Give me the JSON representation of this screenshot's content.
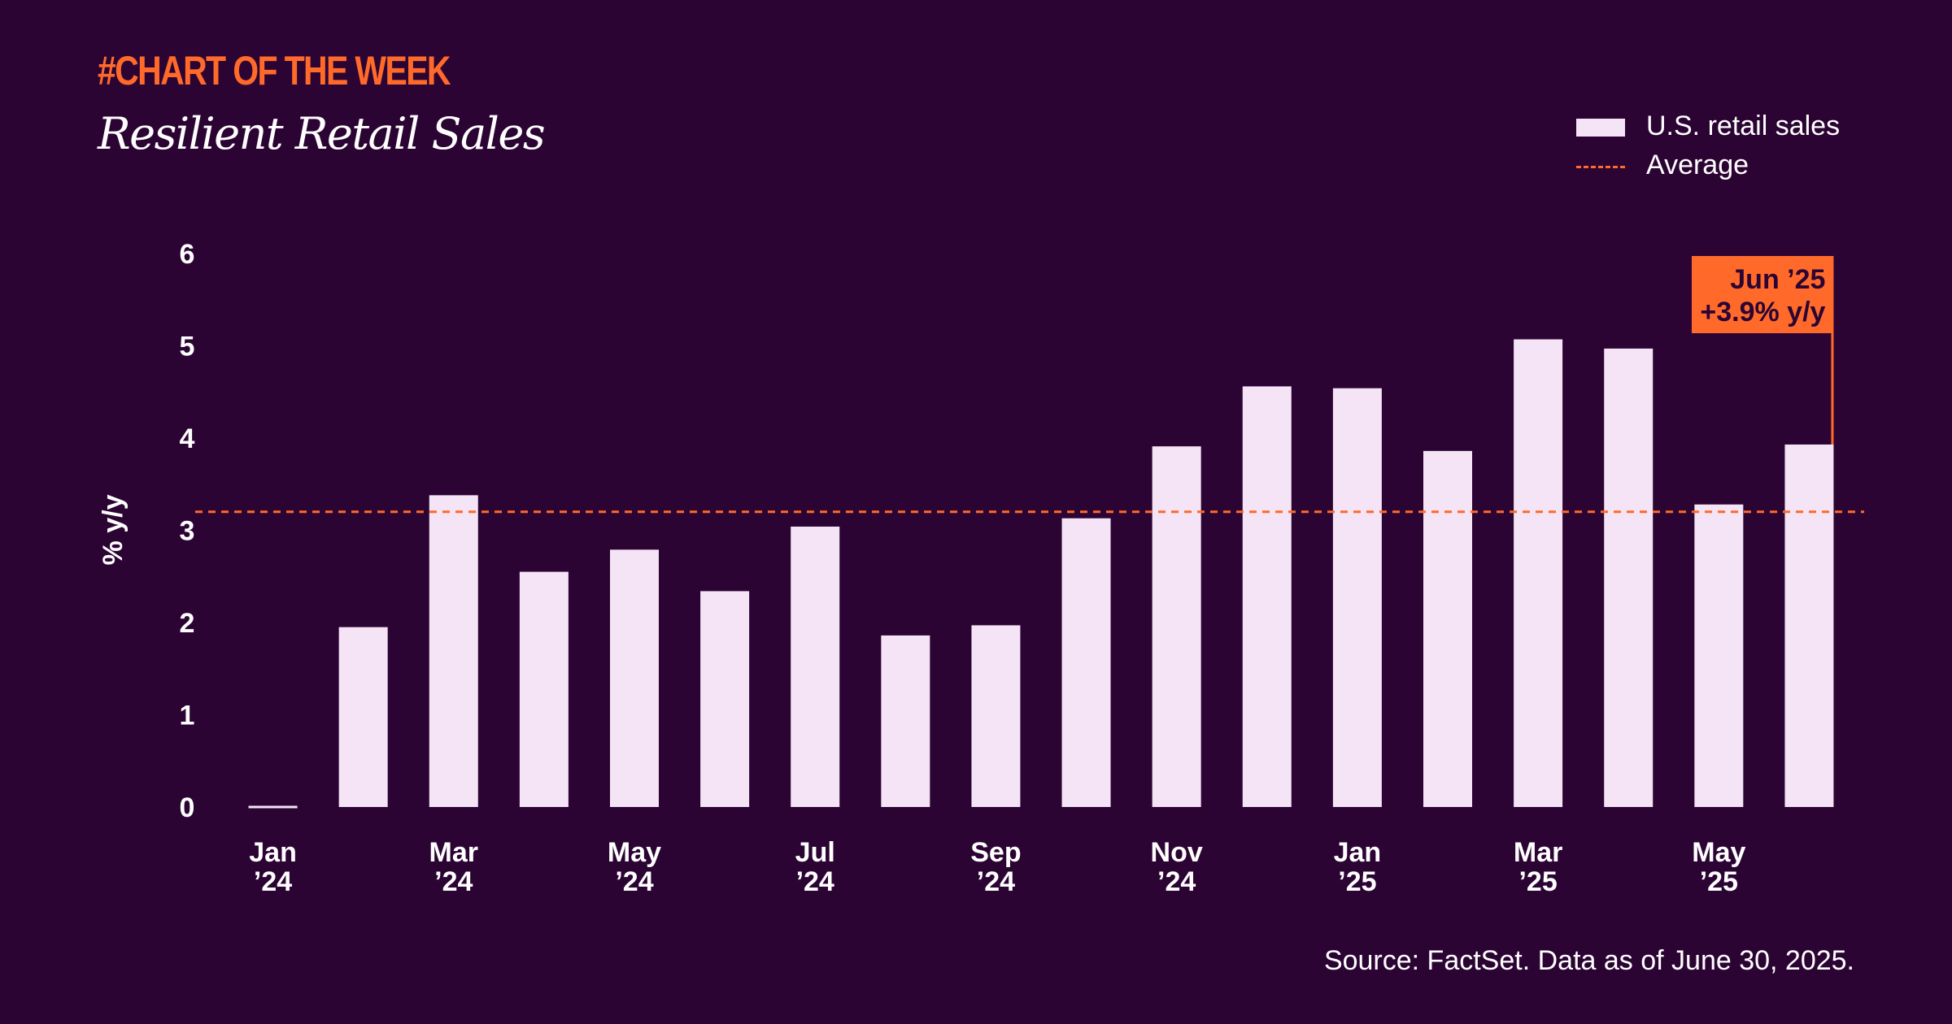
{
  "header": {
    "kicker": "#CHART OF THE WEEK",
    "title": "Resilient Retail Sales"
  },
  "legend": {
    "bars_label": "U.S. retail sales",
    "line_label": "Average"
  },
  "colors": {
    "background": "#2c0434",
    "bar": "#f4e4f6",
    "accent": "#ff6a2a",
    "text": "#ffffff",
    "callout_text": "#2c0434"
  },
  "chart_data": {
    "type": "bar",
    "title": "Resilient Retail Sales",
    "xlabel": "",
    "ylabel": "% y/y",
    "ylim": [
      0,
      6
    ],
    "yticks": [
      0,
      1,
      2,
      3,
      4,
      5,
      6
    ],
    "grid": false,
    "legend_position": "top-right",
    "categories": [
      "Jan '24",
      "Feb '24",
      "Mar '24",
      "Apr '24",
      "May '24",
      "Jun '24",
      "Jul '24",
      "Aug '24",
      "Sep '24",
      "Oct '24",
      "Nov '24",
      "Dec '24",
      "Jan '25",
      "Feb '25",
      "Mar '25",
      "Apr '25",
      "May '25",
      "Jun '25"
    ],
    "series": [
      {
        "name": "U.S. retail sales",
        "values": [
          0.0,
          1.95,
          3.38,
          2.55,
          2.79,
          2.34,
          3.04,
          1.86,
          1.97,
          3.13,
          3.91,
          4.56,
          4.54,
          3.86,
          5.07,
          4.97,
          3.28,
          3.93
        ]
      }
    ],
    "average": 3.2,
    "tick_labels": [
      {
        "index": 0,
        "month": "Jan",
        "year": "’24"
      },
      {
        "index": 2,
        "month": "Mar",
        "year": "’24"
      },
      {
        "index": 4,
        "month": "May",
        "year": "’24"
      },
      {
        "index": 6,
        "month": "Jul",
        "year": "’24"
      },
      {
        "index": 8,
        "month": "Sep",
        "year": "’24"
      },
      {
        "index": 10,
        "month": "Nov",
        "year": "’24"
      },
      {
        "index": 12,
        "month": "Jan",
        "year": "’25"
      },
      {
        "index": 14,
        "month": "Mar",
        "year": "’25"
      },
      {
        "index": 16,
        "month": "May",
        "year": "’25"
      }
    ],
    "annotation": {
      "index": 17,
      "line1": "Jun ’25",
      "line2": "+3.9% y/y"
    }
  },
  "footer": {
    "source": "Source: FactSet. Data as of June 30, 2025."
  }
}
